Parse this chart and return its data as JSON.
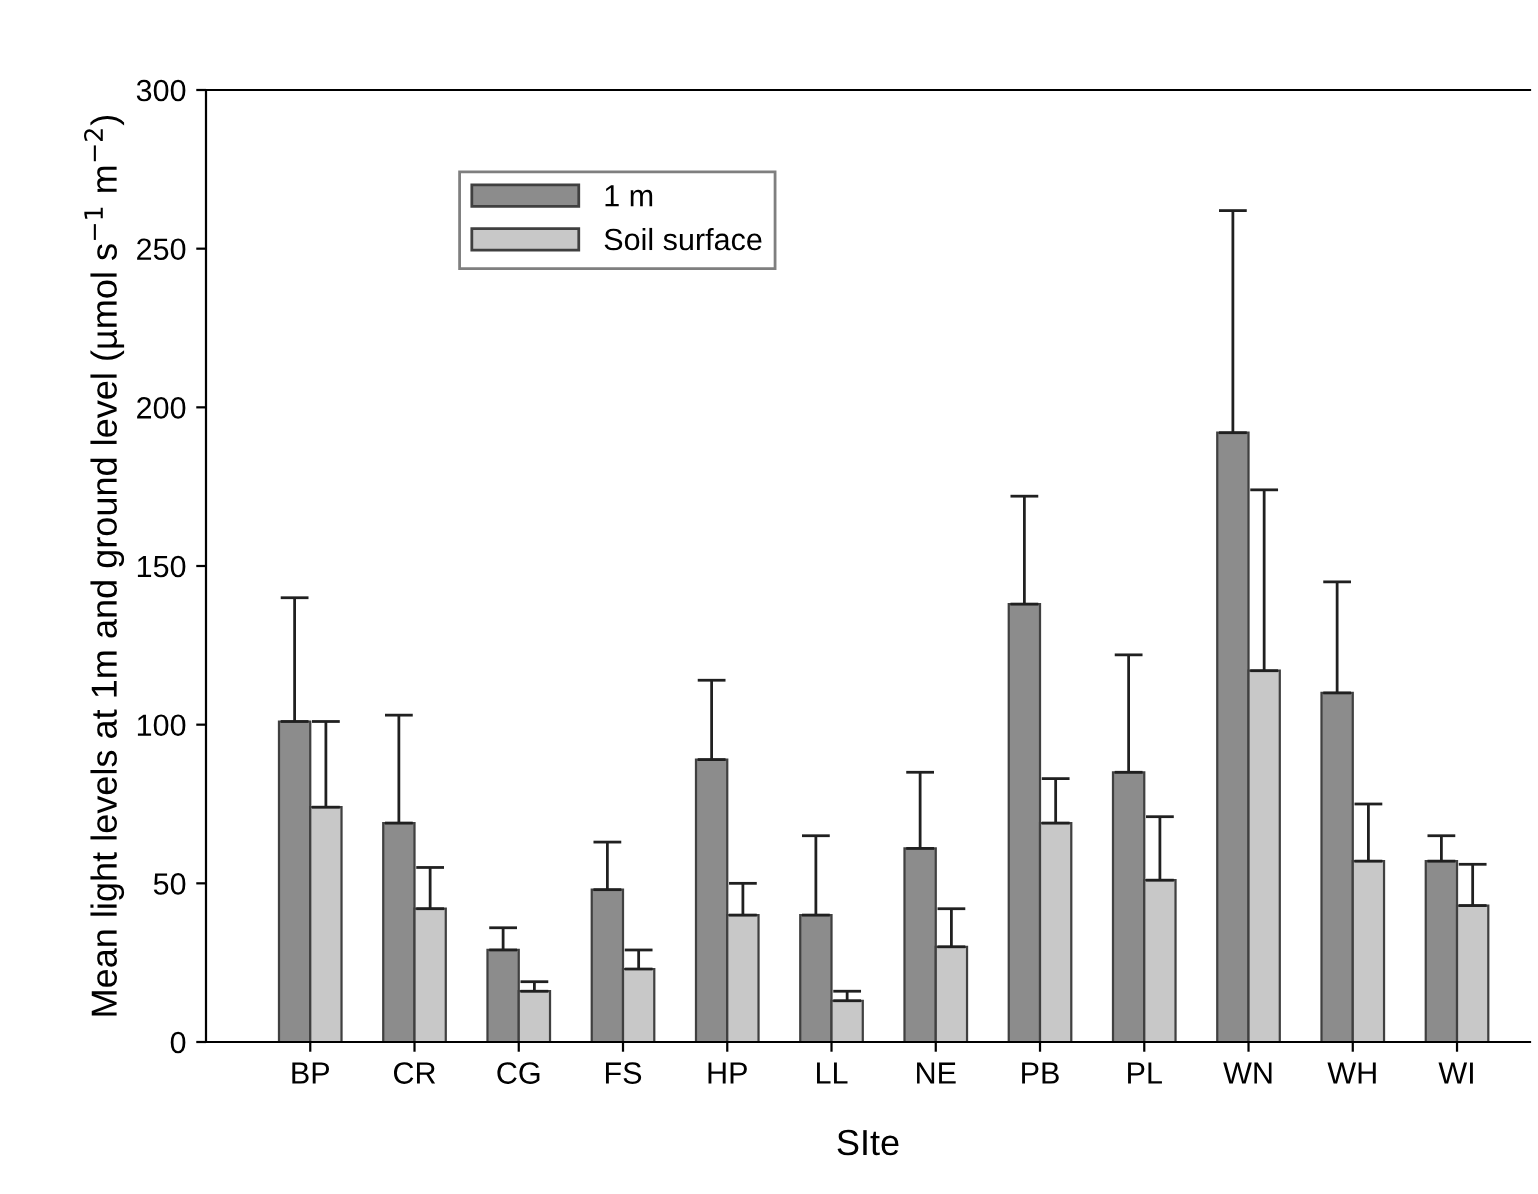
{
  "chart_data": {
    "type": "bar",
    "xlabel": "SIte",
    "ylabel": "Mean light levels at 1m and ground level (µmol s$^{−1}$ m$^{−2}$)",
    "categories": [
      "BP",
      "CR",
      "CG",
      "FS",
      "HP",
      "LL",
      "NE",
      "PB",
      "PL",
      "WN",
      "WH",
      "WI"
    ],
    "series": [
      {
        "name": "1 m",
        "color": "#8c8c8c",
        "values": [
          101,
          69,
          29,
          48,
          89,
          40,
          61,
          138,
          85,
          192,
          110,
          57
        ],
        "errors": [
          [
            101,
            140
          ],
          [
            69,
            103
          ],
          [
            29,
            36
          ],
          [
            48,
            63
          ],
          [
            89,
            114
          ],
          [
            40,
            65
          ],
          [
            61,
            85
          ],
          [
            138,
            172
          ],
          [
            85,
            122
          ],
          [
            192,
            262
          ],
          [
            110,
            145
          ],
          [
            57,
            65
          ]
        ]
      },
      {
        "name": "Soil surface",
        "color": "#c8c8c8",
        "values": [
          74,
          42,
          16,
          23,
          40,
          13,
          30,
          69,
          51,
          117,
          57,
          43
        ],
        "errors": [
          [
            74,
            101
          ],
          [
            42,
            55
          ],
          [
            16,
            19
          ],
          [
            23,
            29
          ],
          [
            40,
            50
          ],
          [
            13,
            16
          ],
          [
            30,
            42
          ],
          [
            69,
            83
          ],
          [
            51,
            71
          ],
          [
            117,
            174
          ],
          [
            57,
            75
          ],
          [
            43,
            56
          ]
        ]
      }
    ],
    "ylim": [
      0,
      300
    ],
    "yticks": [
      0,
      50,
      100,
      150,
      200,
      250,
      300
    ],
    "grid": false,
    "legend": "top left"
  }
}
